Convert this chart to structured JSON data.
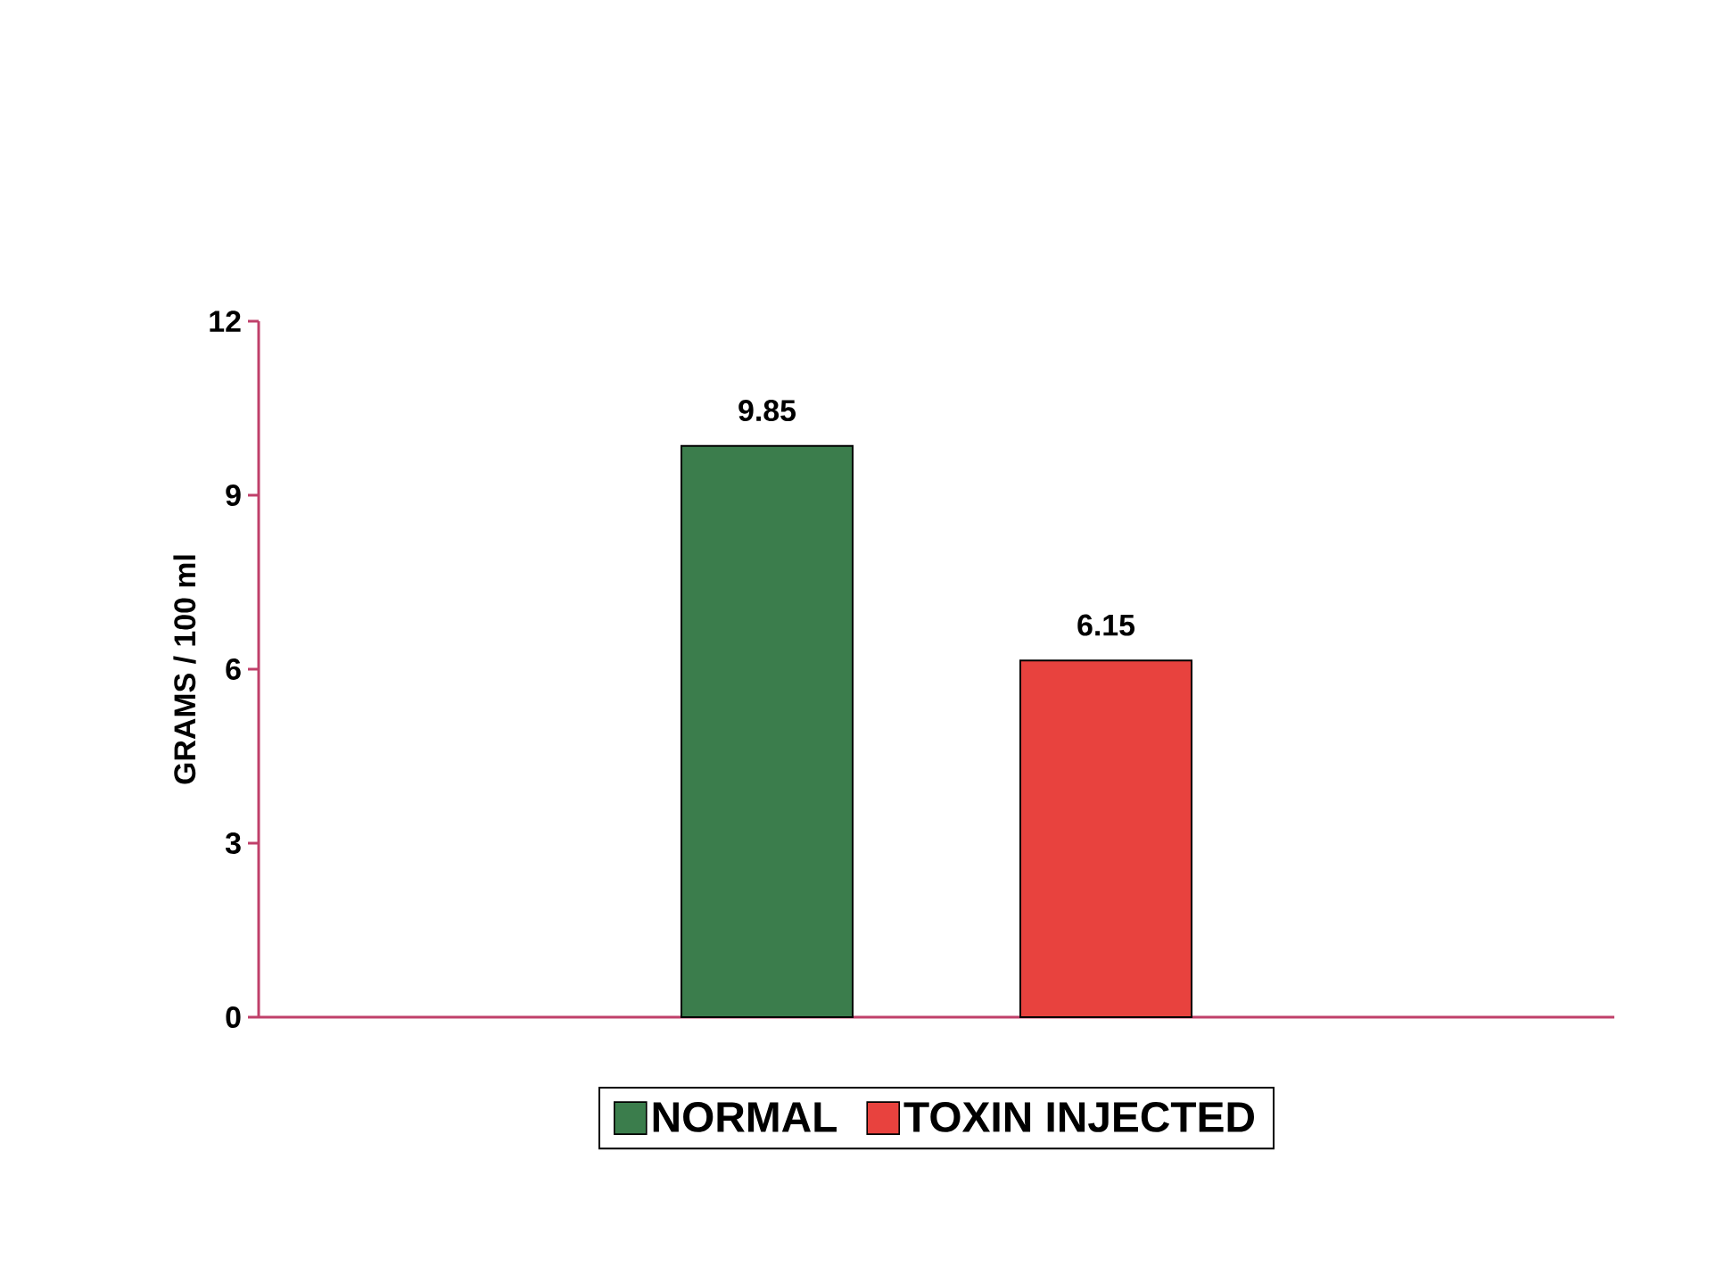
{
  "chart_data": {
    "type": "bar",
    "ylabel": "GRAMS / 100 ml",
    "categories": [
      null
    ],
    "series": [
      {
        "name": "NORMAL",
        "color": "#3b7d4c",
        "values": [
          9.85
        ]
      },
      {
        "name": "TOXIN INJECTED",
        "color": "#e8423e",
        "values": [
          6.15
        ]
      }
    ],
    "ylim": [
      0,
      12
    ],
    "yticks": [
      0,
      3,
      6,
      9,
      12
    ],
    "data_labels": true,
    "legend": "bottom"
  }
}
